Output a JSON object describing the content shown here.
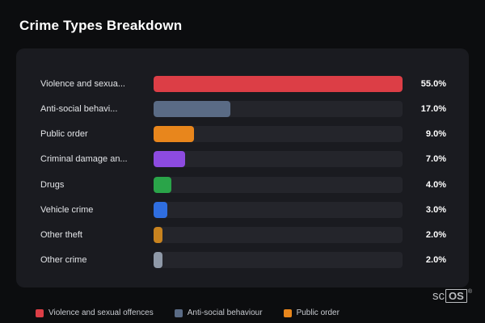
{
  "title": "Crime Types Breakdown",
  "chart_data": {
    "type": "bar",
    "orientation": "horizontal",
    "title": "Crime Types Breakdown",
    "categories": [
      "Violence and sexua...",
      "Anti-social behavi...",
      "Public order",
      "Criminal damage an...",
      "Drugs",
      "Vehicle crime",
      "Other theft",
      "Other crime"
    ],
    "values": [
      55.0,
      17.0,
      9.0,
      7.0,
      4.0,
      3.0,
      2.0,
      2.0
    ],
    "value_labels": [
      "55.0%",
      "17.0%",
      "9.0%",
      "7.0%",
      "4.0%",
      "3.0%",
      "2.0%",
      "2.0%"
    ],
    "colors": [
      "#dc3e46",
      "#5a6b85",
      "#e8861c",
      "#8d4be0",
      "#2aa449",
      "#2f6ee0",
      "#c8831f",
      "#8f99a8"
    ],
    "bar_scale_max": 55,
    "xlim": [
      0,
      55
    ],
    "grid": false,
    "legend_position": "bottom"
  },
  "legend": [
    {
      "label": "Violence and sexual offences",
      "color": "#dc3e46"
    },
    {
      "label": "Anti-social behaviour",
      "color": "#5a6b85"
    },
    {
      "label": "Public order",
      "color": "#e8861c"
    }
  ],
  "watermark": {
    "prefix": "sc",
    "boxed": "OS",
    "registered": "®"
  }
}
